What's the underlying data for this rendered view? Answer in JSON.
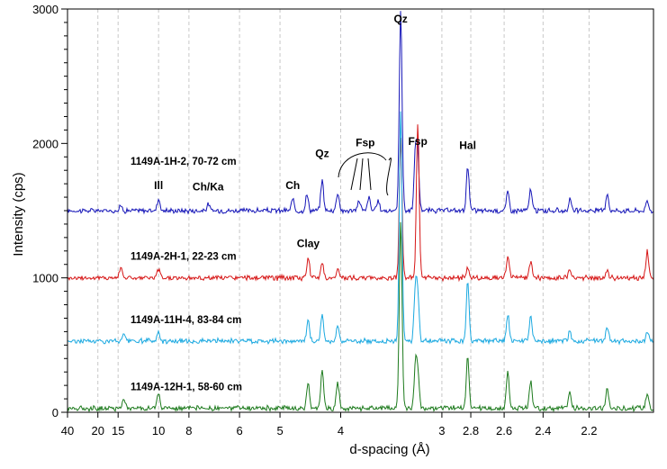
{
  "chart_data": {
    "type": "line",
    "xlabel": "d-spacing (Å)",
    "ylabel": "Intensity (cps)",
    "x_scale": "reciprocal",
    "xlim": [
      40,
      1.97
    ],
    "ylim": [
      0,
      3000
    ],
    "x_ticks": [
      {
        "value": 40,
        "label": "40"
      },
      {
        "value": 20,
        "label": "20"
      },
      {
        "value": 15,
        "label": "15"
      },
      {
        "value": 10,
        "label": "10"
      },
      {
        "value": 8,
        "label": "8"
      },
      {
        "value": 6,
        "label": "6"
      },
      {
        "value": 5,
        "label": "5"
      },
      {
        "value": 4,
        "label": "4"
      },
      {
        "value": 3,
        "label": "3"
      },
      {
        "value": 2.8,
        "label": "2.8"
      },
      {
        "value": 2.6,
        "label": "2.6"
      },
      {
        "value": 2.4,
        "label": "2.4"
      },
      {
        "value": 2.2,
        "label": "2.2"
      }
    ],
    "y_ticks": [
      {
        "value": 0,
        "label": "0"
      },
      {
        "value": 1000,
        "label": "1000"
      },
      {
        "value": 2000,
        "label": "2000"
      },
      {
        "value": 3000,
        "label": "3000"
      }
    ],
    "grid": "vertical dashed at x ticks",
    "series": [
      {
        "name": "1149A-1H-2, 70-72 cm",
        "color": "#1515b8",
        "baseline": 1500,
        "peaks": [
          [
            14.5,
            35
          ],
          [
            10.0,
            90
          ],
          [
            7.1,
            45
          ],
          [
            4.75,
            80
          ],
          [
            4.5,
            120
          ],
          [
            4.26,
            230
          ],
          [
            4.04,
            140
          ],
          [
            3.77,
            80
          ],
          [
            3.66,
            100
          ],
          [
            3.56,
            70
          ],
          [
            3.34,
            1500
          ],
          [
            3.21,
            410
          ],
          [
            3.19,
            380
          ],
          [
            2.82,
            330
          ],
          [
            2.58,
            140
          ],
          [
            2.46,
            160
          ],
          [
            2.28,
            80
          ],
          [
            2.13,
            130
          ],
          [
            1.99,
            70
          ]
        ]
      },
      {
        "name": "1149A-2H-1, 22-23 cm",
        "color": "#d61515",
        "baseline": 1000,
        "peaks": [
          [
            14.5,
            90
          ],
          [
            10.0,
            60
          ],
          [
            4.48,
            150
          ],
          [
            4.26,
            120
          ],
          [
            4.04,
            60
          ],
          [
            3.34,
            1050
          ],
          [
            3.19,
            1150
          ],
          [
            2.82,
            70
          ],
          [
            2.58,
            170
          ],
          [
            2.46,
            120
          ],
          [
            2.28,
            70
          ],
          [
            2.13,
            60
          ],
          [
            1.99,
            200
          ]
        ]
      },
      {
        "name": "1149A-11H-4, 83-84 cm",
        "color": "#19a8e0",
        "baseline": 530,
        "peaks": [
          [
            14.0,
            50
          ],
          [
            10.0,
            60
          ],
          [
            4.48,
            150
          ],
          [
            4.26,
            200
          ],
          [
            4.04,
            110
          ],
          [
            3.34,
            1700
          ],
          [
            3.21,
            380
          ],
          [
            3.19,
            320
          ],
          [
            2.82,
            450
          ],
          [
            2.58,
            200
          ],
          [
            2.46,
            180
          ],
          [
            2.28,
            70
          ],
          [
            2.13,
            100
          ],
          [
            1.99,
            70
          ]
        ]
      },
      {
        "name": "1149A-12H-1, 58-60 cm",
        "color": "#1c7a1c",
        "baseline": 30,
        "peaks": [
          [
            14.0,
            70
          ],
          [
            10.0,
            110
          ],
          [
            4.48,
            200
          ],
          [
            4.26,
            300
          ],
          [
            4.04,
            200
          ],
          [
            3.34,
            1400
          ],
          [
            3.21,
            300
          ],
          [
            3.19,
            260
          ],
          [
            2.82,
            380
          ],
          [
            2.58,
            280
          ],
          [
            2.46,
            200
          ],
          [
            2.28,
            120
          ],
          [
            2.13,
            150
          ],
          [
            1.99,
            120
          ]
        ]
      }
    ],
    "annotations": [
      {
        "text": "Qz",
        "x": 3.34,
        "y": 2900
      },
      {
        "text": "Fsp",
        "x": 3.7,
        "y": 1980
      },
      {
        "text": "Fsp",
        "x": 3.19,
        "y": 1990
      },
      {
        "text": "Qz",
        "x": 4.26,
        "y": 1900
      },
      {
        "text": "Hal",
        "x": 2.82,
        "y": 1960
      },
      {
        "text": "Ch",
        "x": 4.75,
        "y": 1660
      },
      {
        "text": "Ch/Ka",
        "x": 7.1,
        "y": 1650
      },
      {
        "text": "Ill",
        "x": 10.0,
        "y": 1660
      },
      {
        "text": "Clay",
        "x": 4.48,
        "y": 1230
      }
    ]
  }
}
